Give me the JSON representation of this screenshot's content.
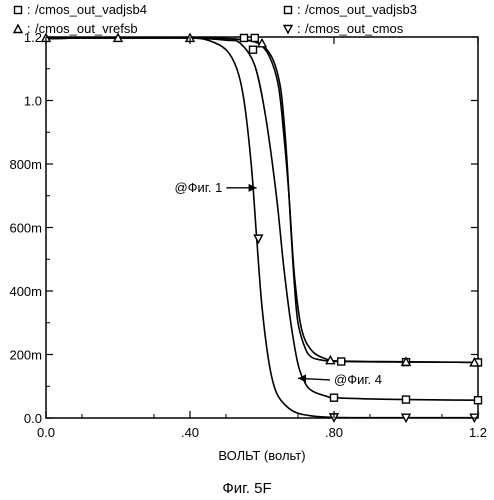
{
  "chart_data": {
    "type": "line",
    "title": "",
    "xlabel": "ВОЛЬТ (вольт)",
    "ylabel": "",
    "caption": "Фиг. 5F",
    "xlim": [
      0,
      1.2
    ],
    "ylim": [
      0,
      1.2
    ],
    "x_ticks": [
      {
        "value": 0.0,
        "label": "0.0"
      },
      {
        "value": 0.4,
        "label": ".40"
      },
      {
        "value": 0.8,
        "label": ".80"
      },
      {
        "value": 1.2,
        "label": "1.2"
      }
    ],
    "y_ticks": [
      {
        "value": 0.0,
        "label": "0.0"
      },
      {
        "value": 0.2,
        "label": "200m"
      },
      {
        "value": 0.4,
        "label": "400m"
      },
      {
        "value": 0.6,
        "label": "600m"
      },
      {
        "value": 0.8,
        "label": "800m"
      },
      {
        "value": 1.0,
        "label": "1.0"
      },
      {
        "value": 1.2,
        "label": "1.2"
      }
    ],
    "grid": false,
    "legend_position": "top",
    "series": [
      {
        "name": "/cmos_out_vadjsb4",
        "marker": "square",
        "x": [
          0.0,
          0.1,
          0.2,
          0.3,
          0.4,
          0.5,
          0.54,
          0.58,
          0.61,
          0.64,
          0.66,
          0.68,
          0.7,
          0.72,
          0.74,
          0.78,
          0.8,
          0.9,
          1.0,
          1.1,
          1.2
        ],
        "y": [
          1.195,
          1.197,
          1.197,
          1.197,
          1.197,
          1.19,
          1.18,
          1.11,
          0.95,
          0.7,
          0.48,
          0.3,
          0.17,
          0.11,
          0.085,
          0.068,
          0.064,
          0.06,
          0.058,
          0.057,
          0.056
        ]
      },
      {
        "name": "/cmos_out_vadjsb3",
        "marker": "square",
        "x": [
          0.0,
          0.1,
          0.2,
          0.3,
          0.4,
          0.5,
          0.56,
          0.6,
          0.63,
          0.65,
          0.66,
          0.67,
          0.68,
          0.69,
          0.7,
          0.72,
          0.74,
          0.78,
          0.8,
          0.9,
          1.0,
          1.1,
          1.2
        ],
        "y": [
          1.195,
          1.197,
          1.197,
          1.197,
          1.197,
          1.195,
          1.19,
          1.175,
          1.13,
          1.05,
          0.95,
          0.8,
          0.6,
          0.42,
          0.3,
          0.22,
          0.19,
          0.18,
          0.178,
          0.177,
          0.176,
          0.176,
          0.175
        ]
      },
      {
        "name": "/cmos_out_vrefsb",
        "marker": "triangle-up",
        "x": [
          0.0,
          0.1,
          0.2,
          0.3,
          0.4,
          0.5,
          0.55,
          0.59,
          0.62,
          0.645,
          0.66,
          0.675,
          0.69,
          0.71,
          0.74,
          0.78,
          0.8,
          0.9,
          1.0,
          1.1,
          1.2
        ],
        "y": [
          1.195,
          1.197,
          1.197,
          1.197,
          1.197,
          1.195,
          1.19,
          1.18,
          1.14,
          1.05,
          0.9,
          0.7,
          0.45,
          0.28,
          0.21,
          0.185,
          0.18,
          0.178,
          0.177,
          0.176,
          0.175
        ]
      },
      {
        "name": "/cmos_out_cmos",
        "marker": "triangle-down",
        "x": [
          0.0,
          0.1,
          0.2,
          0.3,
          0.4,
          0.45,
          0.5,
          0.53,
          0.55,
          0.57,
          0.585,
          0.6,
          0.62,
          0.64,
          0.67,
          0.7,
          0.75,
          0.8,
          0.9,
          1.0,
          1.1,
          1.2
        ],
        "y": [
          1.195,
          1.197,
          1.197,
          1.197,
          1.197,
          1.19,
          1.16,
          1.1,
          1.0,
          0.8,
          0.57,
          0.35,
          0.17,
          0.08,
          0.035,
          0.015,
          0.005,
          0.002,
          0.001,
          0.001,
          0.001,
          0.001
        ]
      }
    ],
    "markers": [
      {
        "series": 0,
        "points": [
          [
            0.55,
            1.197
          ],
          [
            0.575,
            1.16
          ],
          [
            0.8,
            0.064
          ],
          [
            1.0,
            0.058
          ],
          [
            1.2,
            0.056
          ]
        ]
      },
      {
        "series": 1,
        "points": [
          [
            0.58,
            1.197
          ],
          [
            0.82,
            0.178
          ],
          [
            1.0,
            0.176
          ],
          [
            1.2,
            0.175
          ]
        ]
      },
      {
        "series": 2,
        "points": [
          [
            0.0,
            1.197
          ],
          [
            0.2,
            1.197
          ],
          [
            0.4,
            1.197
          ],
          [
            0.6,
            1.18
          ],
          [
            0.79,
            0.182
          ],
          [
            1.0,
            0.177
          ],
          [
            1.19,
            0.175
          ]
        ]
      },
      {
        "series": 3,
        "points": [
          [
            0.59,
            0.565
          ],
          [
            0.8,
            0.002
          ],
          [
            1.0,
            0.001
          ],
          [
            1.19,
            0.001
          ]
        ]
      }
    ],
    "annotations": [
      {
        "text": "@Фиг. 1",
        "x": 0.49,
        "y": 0.725,
        "arrow_to": [
          0.585,
          0.725
        ],
        "align": "end"
      },
      {
        "text": "@Фиг. 4",
        "x": 0.8,
        "y": 0.12,
        "arrow_to": [
          0.7,
          0.125
        ],
        "align": "start"
      }
    ]
  }
}
